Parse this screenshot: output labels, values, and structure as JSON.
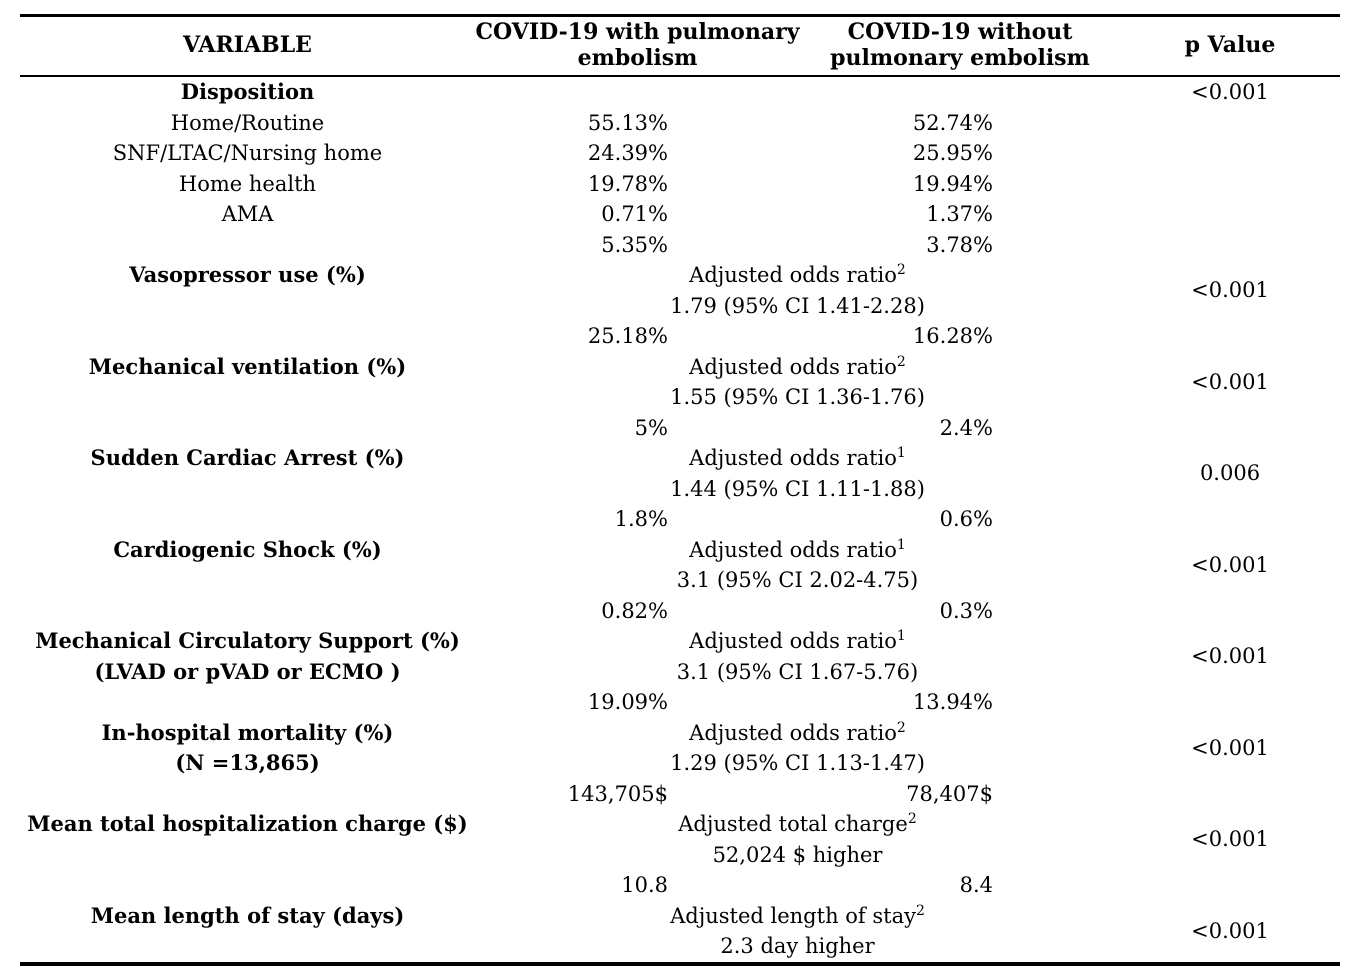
{
  "styles": {
    "text_color": "#000000",
    "background_color": "#ffffff",
    "rule_color": "#000000"
  },
  "table": {
    "header": {
      "variable": "VARIABLE",
      "with_pe": [
        "COVID-19 with pulmonary",
        "embolism"
      ],
      "without_pe": [
        "COVID-19 without",
        "pulmonary embolism"
      ],
      "p_value": "p Value"
    },
    "rows": [
      {
        "type": "row",
        "bold": true,
        "label": "Disposition",
        "p": "<0.001"
      },
      {
        "type": "row",
        "bold": false,
        "label": "Home/Routine",
        "v1": "55.13%",
        "v2": "52.74%"
      },
      {
        "type": "row",
        "bold": false,
        "label": "SNF/LTAC/Nursing home",
        "v1": "24.39%",
        "v2": "25.95%"
      },
      {
        "type": "row",
        "bold": false,
        "label": "Home health",
        "v1": "19.78%",
        "v2": "19.94%"
      },
      {
        "type": "row",
        "bold": false,
        "label": "AMA",
        "v1": "0.71%",
        "v2": "1.37%"
      },
      {
        "type": "row",
        "bold": false,
        "v1": "5.35%",
        "v2": "3.78%"
      },
      {
        "type": "adjusted",
        "label": "Vasopressor use (%)",
        "line1": "Adjusted odds ratio",
        "sup": "2",
        "line2": "1.79 (95% CI 1.41-2.28)",
        "p": "<0.001"
      },
      {
        "type": "row",
        "bold": false,
        "v1": "25.18%",
        "v2": "16.28%"
      },
      {
        "type": "adjusted",
        "label": "Mechanical ventilation (%)",
        "line1": "Adjusted odds ratio",
        "sup": "2",
        "line2": "1.55 (95% CI 1.36-1.76)",
        "p": "<0.001"
      },
      {
        "type": "row",
        "bold": false,
        "v1": "5%",
        "v2": "2.4%"
      },
      {
        "type": "adjusted",
        "label": "Sudden Cardiac Arrest (%)",
        "line1": "Adjusted odds ratio",
        "sup": "1",
        "line2": "1.44 (95% CI 1.11-1.88)",
        "p": "0.006"
      },
      {
        "type": "row",
        "bold": false,
        "v1": "1.8%",
        "v2": "0.6%"
      },
      {
        "type": "adjusted",
        "label": "Cardiogenic Shock (%)",
        "line1": "Adjusted odds ratio",
        "sup": "1",
        "line2": "3.1 (95% CI 2.02-4.75)",
        "p": "<0.001"
      },
      {
        "type": "row",
        "bold": false,
        "v1": "0.82%",
        "v2": "0.3%"
      },
      {
        "type": "adjusted",
        "label": "Mechanical Circulatory Support (%)",
        "label2": "(LVAD or pVAD or ECMO )",
        "line1": "Adjusted odds ratio",
        "sup": "1",
        "line2": "3.1 (95% CI 1.67-5.76)",
        "p": "<0.001"
      },
      {
        "type": "row",
        "bold": false,
        "v1": "19.09%",
        "v2": "13.94%"
      },
      {
        "type": "adjusted",
        "label": "In-hospital mortality (%)",
        "label2": "(N =13,865)",
        "line1": "Adjusted odds ratio",
        "sup": "2",
        "line2": "1.29 (95% CI 1.13-1.47)",
        "p": "<0.001"
      },
      {
        "type": "row",
        "bold": false,
        "v1": "143,705$",
        "v2": "78,407$"
      },
      {
        "type": "adjusted",
        "label": "Mean total hospitalization charge ($)",
        "line1": "Adjusted total charge",
        "sup": "2",
        "line2": "52,024 $ higher",
        "p": "<0.001"
      },
      {
        "type": "row",
        "bold": false,
        "v1": "10.8",
        "v2": "8.4"
      },
      {
        "type": "adjusted",
        "label": "Mean length of stay (days)",
        "line1": "Adjusted length of stay",
        "sup": "2",
        "line2": "2.3 day higher",
        "p": "<0.001"
      }
    ]
  }
}
